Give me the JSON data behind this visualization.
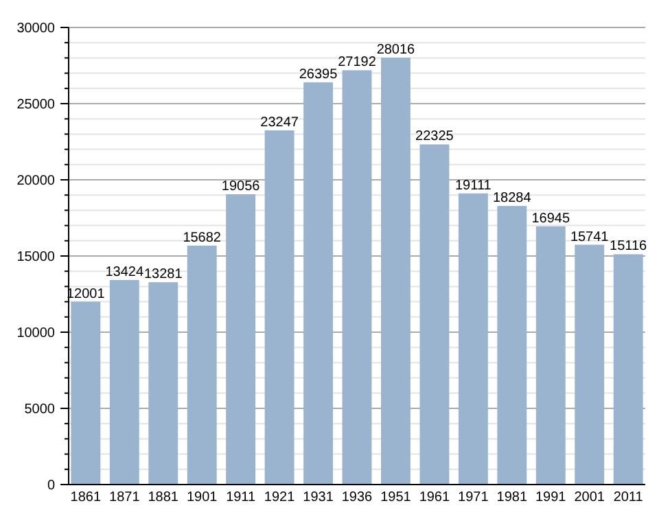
{
  "chart_data": {
    "type": "bar",
    "categories": [
      "1861",
      "1871",
      "1881",
      "1901",
      "1911",
      "1921",
      "1931",
      "1936",
      "1951",
      "1961",
      "1971",
      "1981",
      "1991",
      "2001",
      "2011"
    ],
    "values": [
      12001,
      13424,
      13281,
      15682,
      19056,
      23247,
      26395,
      27192,
      28016,
      22325,
      19111,
      18284,
      16945,
      15741,
      15116
    ],
    "color": "#9ab3cf",
    "ylim": [
      0,
      30000
    ],
    "yticks": [
      0,
      {
        "value": 1000,
        "label": null
      },
      {
        "value": 2000,
        "label": null
      },
      {
        "value": 3000,
        "label": null
      },
      {
        "value": 4000,
        "label": null
      },
      5000,
      {
        "value": 6000,
        "label": null
      },
      {
        "value": 7000,
        "label": null
      },
      {
        "value": 8000,
        "label": null
      },
      {
        "value": 9000,
        "label": null
      },
      10000,
      {
        "value": 11000,
        "label": null
      },
      {
        "value": 12000,
        "label": null
      },
      {
        "value": 13000,
        "label": null
      },
      {
        "value": 14000,
        "label": null
      },
      15000,
      {
        "value": 16000,
        "label": null
      },
      {
        "value": 17000,
        "label": null
      },
      {
        "value": 18000,
        "label": null
      },
      {
        "value": 19000,
        "label": null
      },
      20000,
      {
        "value": 21000,
        "label": null
      },
      {
        "value": 22000,
        "label": null
      },
      {
        "value": 23000,
        "label": null
      },
      {
        "value": 24000,
        "label": null
      },
      25000,
      {
        "value": 26000,
        "label": null
      },
      {
        "value": 27000,
        "label": null
      },
      {
        "value": 28000,
        "label": null
      },
      {
        "value": 29000,
        "label": null
      },
      30000
    ],
    "grid": true,
    "data_labels": true
  }
}
